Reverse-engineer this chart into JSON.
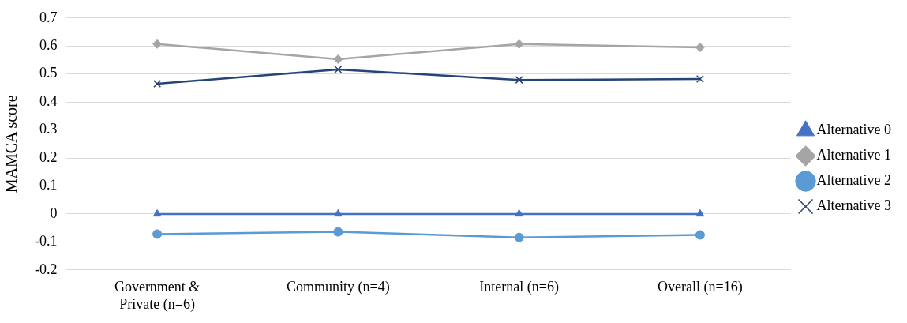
{
  "chart_data": {
    "type": "line",
    "ylabel": "MAMCA score",
    "categories": [
      "Government & Private (n=6)",
      "Community (n=4)",
      "Internal (n=6)",
      "Overall (n=16)"
    ],
    "series": [
      {
        "name": "Alternative 0",
        "color": "#4472c4",
        "marker": "triangle",
        "values": [
          0,
          0,
          0,
          0
        ]
      },
      {
        "name": "Alternative 1",
        "color": "#a5a5a5",
        "marker": "diamond",
        "values": [
          0.607,
          0.553,
          0.607,
          0.595
        ]
      },
      {
        "name": "Alternative 2",
        "color": "#5b9bd5",
        "marker": "circle",
        "values": [
          -0.072,
          -0.064,
          -0.084,
          -0.075
        ]
      },
      {
        "name": "Alternative 3",
        "color": "#264478",
        "marker": "cross",
        "values": [
          0.465,
          0.516,
          0.479,
          0.482
        ]
      }
    ],
    "ylim": [
      -0.2,
      0.7
    ],
    "yticks": [
      -0.2,
      -0.1,
      0,
      0.1,
      0.2,
      0.3,
      0.4,
      0.5,
      0.6,
      0.7
    ],
    "grid": "y",
    "legend": "right"
  }
}
